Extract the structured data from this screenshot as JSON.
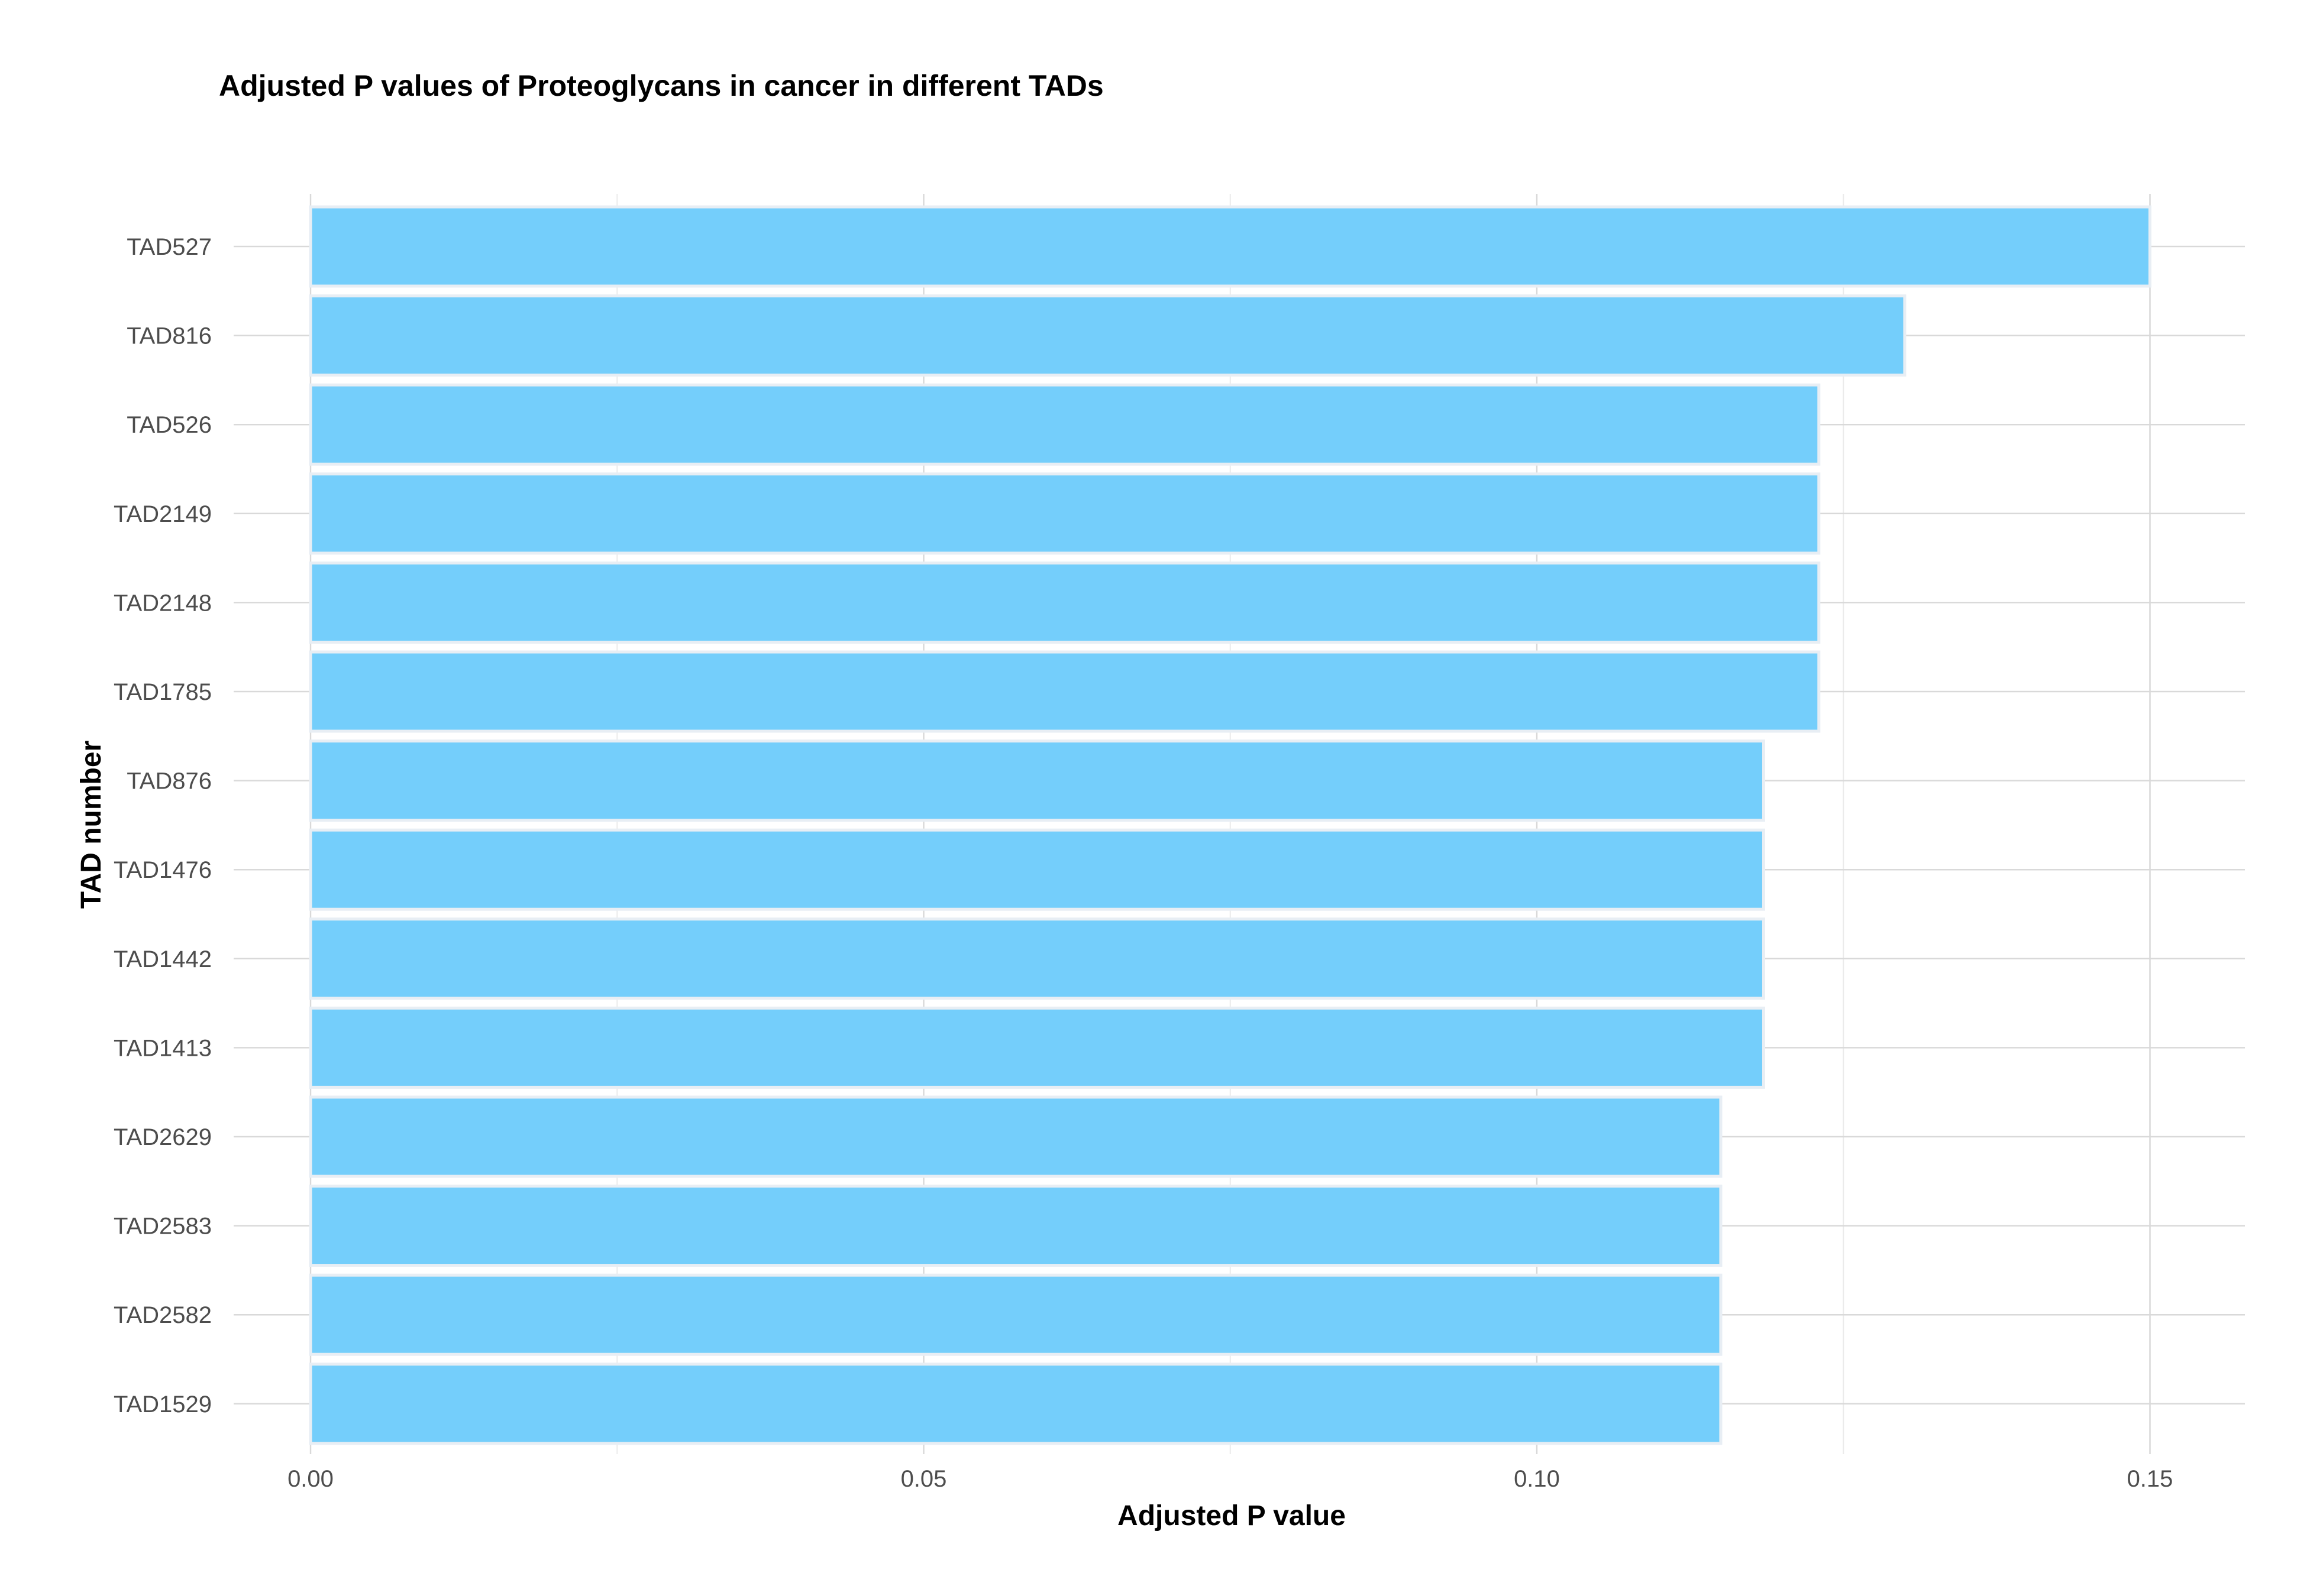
{
  "chart_data": {
    "type": "bar",
    "orientation": "horizontal",
    "title": "Adjusted P values of Proteoglycans in cancer in different TADs",
    "xlabel": "Adjusted P value",
    "ylabel": "TAD number",
    "categories": [
      "TAD527",
      "TAD816",
      "TAD526",
      "TAD2149",
      "TAD2148",
      "TAD1785",
      "TAD876",
      "TAD1476",
      "TAD1442",
      "TAD1413",
      "TAD2629",
      "TAD2583",
      "TAD2582",
      "TAD1529"
    ],
    "values": [
      0.15,
      0.13,
      0.123,
      0.123,
      0.123,
      0.123,
      0.1185,
      0.1185,
      0.1185,
      0.1185,
      0.115,
      0.115,
      0.115,
      0.115
    ],
    "xlim": [
      0,
      0.1575
    ],
    "xticks": [
      0.0,
      0.05,
      0.1,
      0.15
    ],
    "xtick_labels": [
      "0.00",
      "0.05",
      "0.10",
      "0.15"
    ],
    "grid": true,
    "colors": {
      "bar_fill": "#74CEFB",
      "bar_outline": "#E8EEF4",
      "grid_major": "#D9D9D9",
      "grid_minor": "#EBEBEB"
    }
  }
}
